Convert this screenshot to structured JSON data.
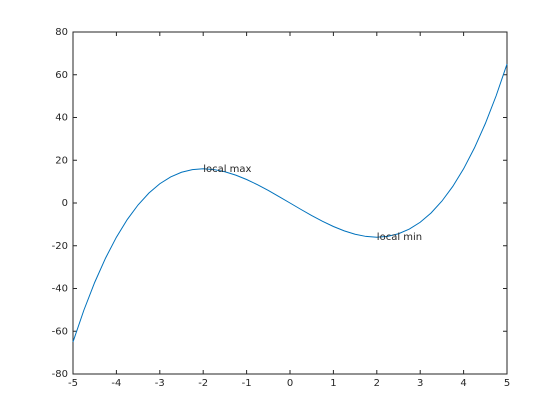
{
  "chart_data": {
    "type": "line",
    "x": [
      -5,
      -4.75,
      -4.5,
      -4.25,
      -4,
      -3.75,
      -3.5,
      -3.25,
      -3,
      -2.75,
      -2.5,
      -2.25,
      -2,
      -1.75,
      -1.5,
      -1.25,
      -1,
      -0.75,
      -0.5,
      -0.25,
      0,
      0.25,
      0.5,
      0.75,
      1,
      1.25,
      1.5,
      1.75,
      2,
      2.25,
      2.5,
      2.75,
      3,
      3.25,
      3.5,
      3.75,
      4,
      4.25,
      4.5,
      4.75,
      5
    ],
    "series": [
      {
        "color": "#0072bd",
        "values": [
          -65,
          -50.17,
          -37.13,
          -25.77,
          -16,
          -7.73,
          -0.88,
          4.67,
          9,
          12.2,
          14.38,
          15.61,
          16,
          15.64,
          14.63,
          13.05,
          11,
          8.58,
          5.88,
          2.98,
          0,
          -2.98,
          -5.88,
          -8.58,
          -11,
          -13.05,
          -14.63,
          -15.64,
          -16,
          -15.61,
          -14.38,
          -12.2,
          -9,
          -4.67,
          0.88,
          7.73,
          16,
          25.77,
          37.13,
          50.17,
          65
        ]
      }
    ],
    "xlim": [
      -5,
      5
    ],
    "xticks": [
      -5,
      -4,
      -3,
      -2,
      -1,
      0,
      1,
      2,
      3,
      4,
      5
    ],
    "ylim": [
      -80,
      80
    ],
    "yticks": [
      -80,
      -60,
      -40,
      -20,
      0,
      20,
      40,
      60,
      80
    ],
    "grid": false,
    "annotations": [
      {
        "text": "local max",
        "x": -2,
        "y": 16
      },
      {
        "text": "local min",
        "x": 2,
        "y": -16
      }
    ]
  }
}
